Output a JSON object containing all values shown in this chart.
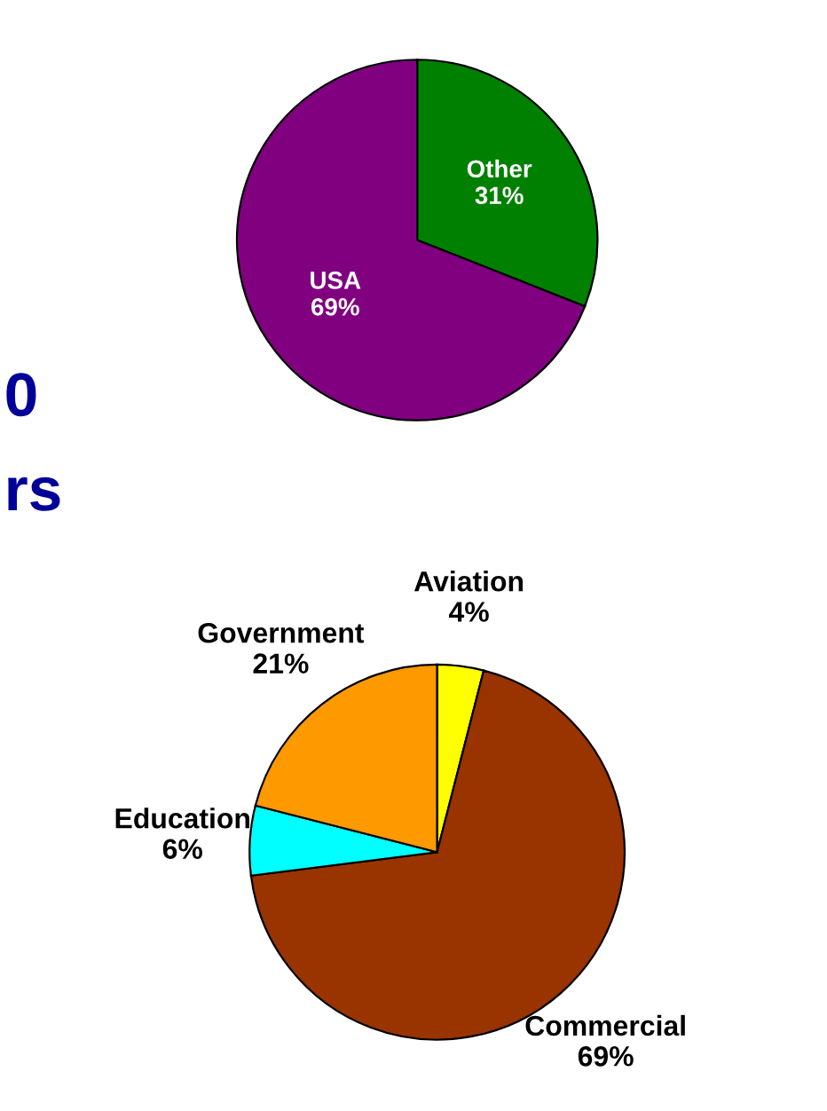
{
  "chart_data": [
    {
      "type": "pie",
      "categories": [
        "Other",
        "USA"
      ],
      "values": [
        31,
        69
      ],
      "value_labels": [
        "31%",
        "69%"
      ],
      "colors": [
        "#008000",
        "#800080"
      ],
      "annotations": [
        "0",
        "rs"
      ]
    },
    {
      "type": "pie",
      "categories": [
        "Aviation",
        "Commercial",
        "Education",
        "Government"
      ],
      "values": [
        4,
        69,
        6,
        21
      ],
      "value_labels": [
        "4%",
        "69%",
        "6%",
        "21%"
      ],
      "colors": [
        "#ffff00",
        "#993300",
        "#00ffff",
        "#ff9900"
      ]
    }
  ]
}
